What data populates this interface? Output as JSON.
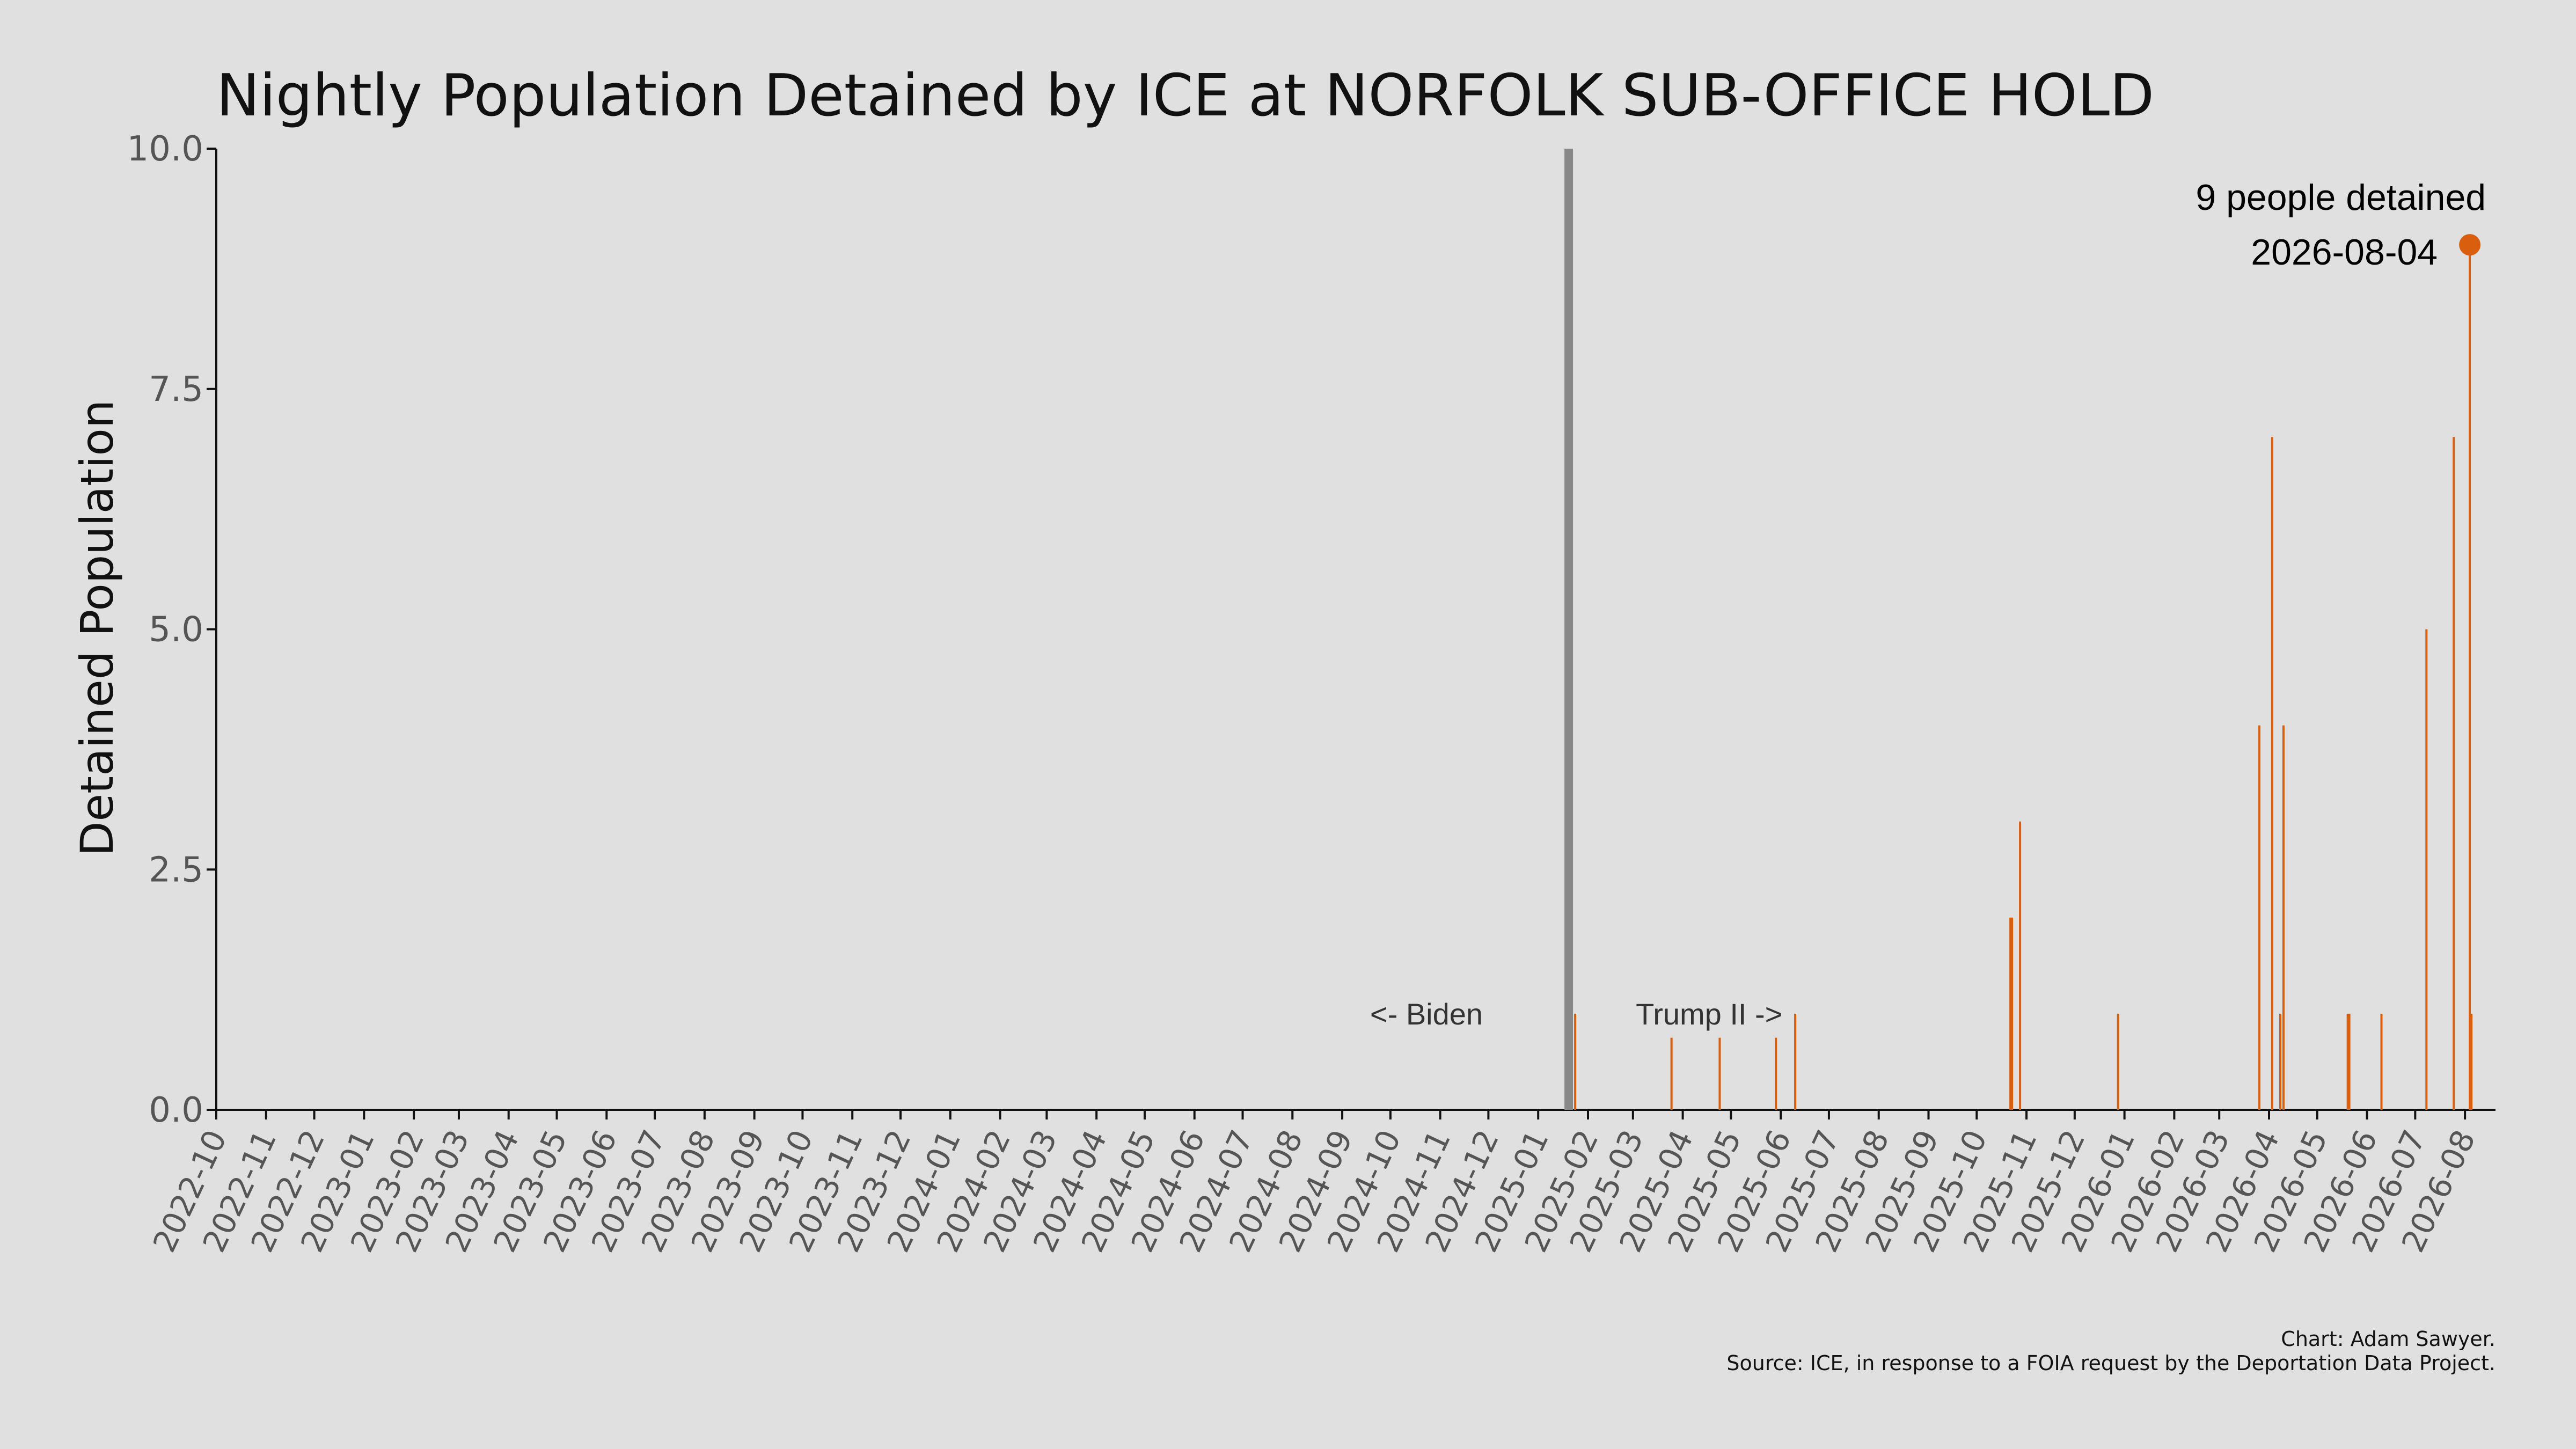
{
  "chart_data": {
    "type": "bar",
    "title": "Nightly Population Detained by ICE at NORFOLK SUB-OFFICE HOLD",
    "ylabel": "Detained Population",
    "xlabel": "",
    "ylim": [
      0,
      10
    ],
    "yticks": [
      "0.0",
      "2.5",
      "5.0",
      "7.5",
      "10.0"
    ],
    "xlim": [
      "2022-10-01",
      "2026-08-20"
    ],
    "xticks": [
      "2022-10",
      "2022-11",
      "2022-12",
      "2023-01",
      "2023-02",
      "2023-03",
      "2023-04",
      "2023-05",
      "2023-06",
      "2023-07",
      "2023-08",
      "2023-09",
      "2023-10",
      "2023-11",
      "2023-12",
      "2024-01",
      "2024-02",
      "2024-03",
      "2024-04",
      "2024-05",
      "2024-06",
      "2024-07",
      "2024-08",
      "2024-09",
      "2024-10",
      "2024-11",
      "2024-12",
      "2025-01",
      "2025-02",
      "2025-03",
      "2025-04",
      "2025-05",
      "2025-06",
      "2025-07",
      "2025-08",
      "2025-09",
      "2025-10",
      "2025-11",
      "2025-12",
      "2026-01",
      "2026-02",
      "2026-03",
      "2026-04",
      "2026-05",
      "2026-06",
      "2026-07",
      "2026-08"
    ],
    "grid": false,
    "series": [
      {
        "color": "#d95f0e",
        "points": [
          {
            "x": "2025-01-24",
            "y": 1
          },
          {
            "x": "2025-03-25",
            "y": 0.75
          },
          {
            "x": "2025-04-24",
            "y": 0.75
          },
          {
            "x": "2025-05-29",
            "y": 0.75
          },
          {
            "x": "2025-06-10",
            "y": 1
          },
          {
            "x": "2025-10-22",
            "y": 2
          },
          {
            "x": "2025-10-23",
            "y": 2
          },
          {
            "x": "2025-10-28",
            "y": 3
          },
          {
            "x": "2025-12-28",
            "y": 1
          },
          {
            "x": "2026-03-26",
            "y": 4
          },
          {
            "x": "2026-04-03",
            "y": 7
          },
          {
            "x": "2026-04-08",
            "y": 1
          },
          {
            "x": "2026-04-10",
            "y": 4
          },
          {
            "x": "2026-05-20",
            "y": 1
          },
          {
            "x": "2026-05-21",
            "y": 1
          },
          {
            "x": "2026-06-10",
            "y": 1
          },
          {
            "x": "2026-07-08",
            "y": 5
          },
          {
            "x": "2026-07-25",
            "y": 7
          },
          {
            "x": "2026-08-04",
            "y": 9
          },
          {
            "x": "2026-08-05",
            "y": 1
          }
        ]
      }
    ],
    "divider": {
      "x": "2025-01-20",
      "color": "#888888"
    },
    "annotations": {
      "left_label": "<- Biden",
      "right_label": "Trump II ->",
      "highlight": {
        "x": "2026-08-04",
        "y": 9,
        "line1": "9 people detained",
        "line2": "2026-08-04",
        "color": "#d95f0e"
      }
    }
  },
  "credits": {
    "line1": "Chart: Adam Sawyer.",
    "line2": "Source: ICE, in response to a FOIA request by the Deportation Data Project."
  }
}
